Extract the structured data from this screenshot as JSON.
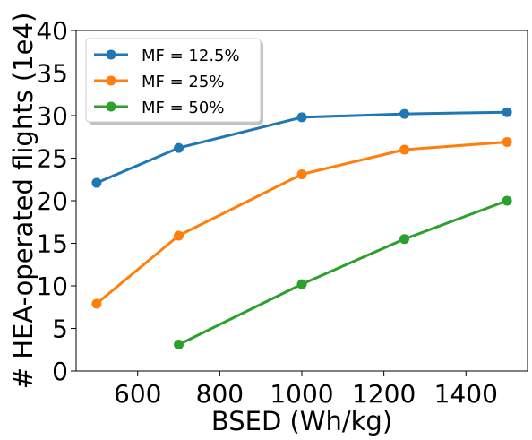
{
  "chart_data": {
    "type": "line",
    "title": "",
    "xlabel": "BSED (Wh/kg)",
    "ylabel": "# HEA-operated flights (1e4)",
    "xlim": [
      450,
      1550
    ],
    "ylim": [
      0,
      40
    ],
    "xticks": [
      600,
      800,
      1000,
      1200,
      1400
    ],
    "xtick_labels": [
      "600",
      "800",
      "1000",
      "1200",
      "1400"
    ],
    "yticks": [
      0,
      5,
      10,
      15,
      20,
      25,
      30,
      35,
      40
    ],
    "ytick_labels": [
      "0",
      "5",
      "10",
      "15",
      "20",
      "25",
      "30",
      "35",
      "40"
    ],
    "grid": false,
    "legend_position": "top-left",
    "series": [
      {
        "name": "MF = 12.5%",
        "color": "#1f77b4",
        "x": [
          500,
          700,
          1000,
          1250,
          1500
        ],
        "y": [
          22.1,
          26.2,
          29.8,
          30.2,
          30.4
        ]
      },
      {
        "name": "MF = 25%",
        "color": "#ff7f0e",
        "x": [
          500,
          700,
          1000,
          1250,
          1500
        ],
        "y": [
          7.9,
          15.9,
          23.1,
          26.0,
          26.9
        ]
      },
      {
        "name": "MF = 50%",
        "color": "#2ca02c",
        "x": [
          700,
          1000,
          1250,
          1500
        ],
        "y": [
          3.1,
          10.2,
          15.5,
          20.0
        ]
      }
    ]
  }
}
